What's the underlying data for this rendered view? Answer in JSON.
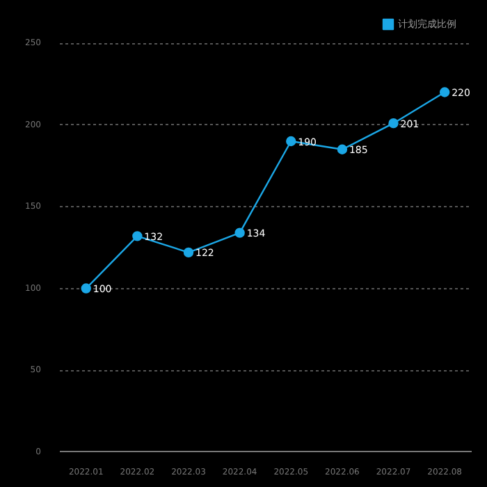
{
  "chart_data": {
    "type": "line",
    "categories": [
      "2022.01",
      "2022.02",
      "2022.03",
      "2022.04",
      "2022.05",
      "2022.06",
      "2022.07",
      "2022.08"
    ],
    "series": [
      {
        "name": "计划完成比例",
        "color": "#1ba7e6",
        "values": [
          100,
          132,
          122,
          134,
          190,
          185,
          201,
          220
        ]
      }
    ],
    "ylim": [
      0,
      250
    ],
    "yticks": [
      0,
      50,
      100,
      150,
      200,
      250
    ],
    "grid": "y",
    "legend": "top right",
    "marker": "circle",
    "line_style": "solid",
    "data_labels": true
  }
}
